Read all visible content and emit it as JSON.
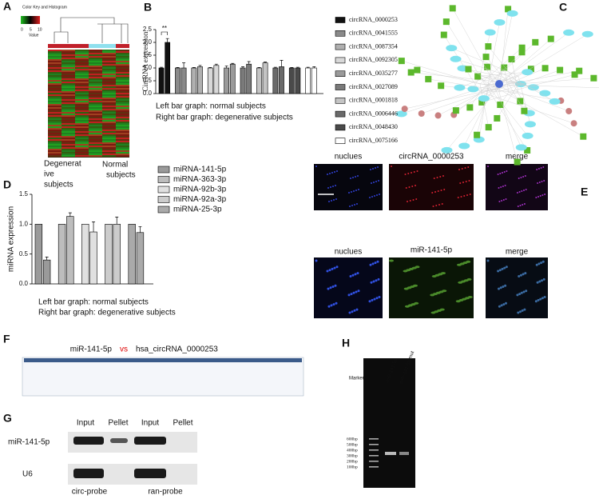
{
  "panel_labels": [
    "A",
    "B",
    "C",
    "D",
    "E",
    "F",
    "G",
    "H"
  ],
  "heatmap": {
    "color_key_title": "Color Key and Histogram",
    "key_axis_label": "Value",
    "key_ticks": [
      "0",
      "5",
      "10"
    ],
    "group_labels": [
      [
        "Degenerat",
        "ive",
        "subjects"
      ],
      [
        "Normal",
        "subjects"
      ]
    ]
  },
  "chart_data": [
    {
      "type": "bar",
      "y_label": "CircRNA expression",
      "annotation": "**",
      "notes": [
        "Left bar graph: normal subjects",
        "Right bar graph: degenerative  subjects"
      ],
      "categories": [
        null,
        null
      ],
      "ylim": [
        0,
        2.5
      ],
      "yticks": [
        {
          "value": 0,
          "label": "0.0"
        },
        {
          "value": 0.5,
          "label": "0.5"
        },
        {
          "value": 1,
          "label": "1.0"
        },
        {
          "value": 1.5,
          "label": "1.5"
        },
        {
          "value": 2,
          "label": "2.0"
        },
        {
          "value": 2.5,
          "label": "2.5"
        }
      ],
      "series": [
        {
          "name": "circRNA_0000253",
          "color": "#111111",
          "values": [
            1.0,
            2.0
          ],
          "errors": [
            0.03,
            0.15
          ]
        },
        {
          "name": "circRNA_0041555",
          "color": "#8a8a8a",
          "values": [
            1.0,
            1.0
          ],
          "errors": [
            0.02,
            0.2
          ]
        },
        {
          "name": "circRNA_0087354",
          "color": "#b0b0b0",
          "values": [
            1.0,
            1.05
          ],
          "errors": [
            0.02,
            0.05
          ]
        },
        {
          "name": "circRNA_0092305",
          "color": "#d8d8d8",
          "values": [
            1.0,
            1.1
          ],
          "errors": [
            0.02,
            0.05
          ]
        },
        {
          "name": "circRNA_0035277",
          "color": "#9a9a9a",
          "values": [
            1.0,
            1.15
          ],
          "errors": [
            0.08,
            0.03
          ]
        },
        {
          "name": "circRNA_0027089",
          "color": "#7a7a7a",
          "values": [
            1.0,
            1.15
          ],
          "errors": [
            0.05,
            0.1
          ]
        },
        {
          "name": "circRNA_0001818",
          "color": "#c4c4c4",
          "values": [
            1.0,
            1.2
          ],
          "errors": [
            0.02,
            0.03
          ]
        },
        {
          "name": "circRNA_0006446",
          "color": "#6a6a6a",
          "values": [
            1.0,
            1.05
          ],
          "errors": [
            0.03,
            0.25
          ]
        },
        {
          "name": "circRNA_0048430",
          "color": "#4a4a4a",
          "values": [
            1.0,
            1.0
          ],
          "errors": [
            0.02,
            0.03
          ]
        },
        {
          "name": "circRNA_0075166",
          "color": "#ffffff",
          "values": [
            1.0,
            1.0
          ],
          "errors": [
            0.03,
            0.05
          ]
        }
      ]
    },
    {
      "type": "bar",
      "y_label": "miRNA expression",
      "notes": [
        "Left bar graph: normal subjects",
        "Right bar graph: degenerative  subjects"
      ],
      "categories": [
        null,
        null
      ],
      "ylim": [
        0,
        1.5
      ],
      "yticks": [
        {
          "value": 0,
          "label": "0.0"
        },
        {
          "value": 0.5,
          "label": "0.5"
        },
        {
          "value": 1,
          "label": "1.0"
        },
        {
          "value": 1.5,
          "label": "1.5"
        }
      ],
      "series": [
        {
          "name": "miRNA-141-5p",
          "color": "#9a9a9a",
          "values": [
            1.0,
            0.4
          ],
          "errors": [
            0.0,
            0.05
          ]
        },
        {
          "name": "miRNA-363-3p",
          "color": "#bdbdbd",
          "values": [
            1.0,
            1.13
          ],
          "errors": [
            0.0,
            0.06
          ]
        },
        {
          "name": "miRNA-92b-3p",
          "color": "#e0e0e0",
          "values": [
            1.0,
            0.87
          ],
          "errors": [
            0.0,
            0.17
          ]
        },
        {
          "name": "miRNA-92a-3p",
          "color": "#cccccc",
          "values": [
            1.0,
            1.0
          ],
          "errors": [
            0.0,
            0.12
          ]
        },
        {
          "name": "miRNA-25-3p",
          "color": "#aaaaaa",
          "values": [
            1.0,
            0.86
          ],
          "errors": [
            0.0,
            0.1
          ]
        }
      ]
    }
  ],
  "images_panel": {
    "row1": [
      "nuclues",
      "circRNA_0000253",
      "merge"
    ],
    "row2": [
      "nuclues",
      "miR-141-5p",
      "merge"
    ]
  },
  "alignment": {
    "left": "miR-141-5p",
    "vs": "vs",
    "right": "hsa_circRNA_0000253"
  },
  "pulldown": {
    "columns": [
      "Input",
      "Pellet",
      "Input",
      "Pellet"
    ],
    "rows": [
      "miR-141-5p",
      "U6"
    ],
    "probes": [
      "circ-probe",
      "ran-probe"
    ]
  },
  "gel": {
    "marker": "Marker",
    "lanes": [
      "miR-141-5p",
      "miR-141-5p-mut"
    ],
    "ladder": [
      "600bp",
      "500bp",
      "400bp",
      "300bp",
      "200bp",
      "100bp"
    ]
  }
}
